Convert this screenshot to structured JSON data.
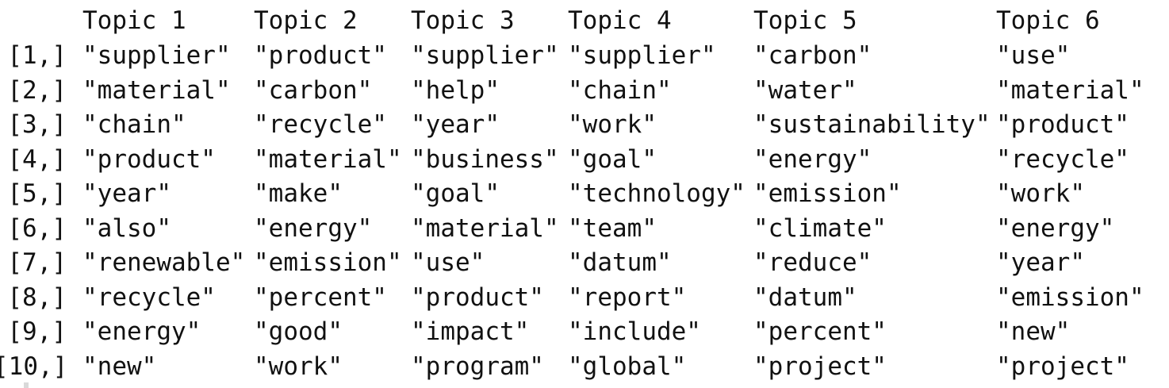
{
  "headers": [
    "Topic 1",
    "Topic 2",
    "Topic 3",
    "Topic 4",
    "Topic 5",
    "Topic 6"
  ],
  "rows": [
    {
      "label": "[1,]",
      "cells": [
        "\"supplier\"",
        "\"product\"",
        "\"supplier\"",
        "\"supplier\"",
        "\"carbon\"",
        "\"use\""
      ]
    },
    {
      "label": "[2,]",
      "cells": [
        "\"material\"",
        "\"carbon\"",
        "\"help\"",
        "\"chain\"",
        "\"water\"",
        "\"material\""
      ]
    },
    {
      "label": "[3,]",
      "cells": [
        "\"chain\"",
        "\"recycle\"",
        "\"year\"",
        "\"work\"",
        "\"sustainability\"",
        "\"product\""
      ]
    },
    {
      "label": "[4,]",
      "cells": [
        "\"product\"",
        "\"material\"",
        "\"business\"",
        "\"goal\"",
        "\"energy\"",
        "\"recycle\""
      ]
    },
    {
      "label": "[5,]",
      "cells": [
        "\"year\"",
        "\"make\"",
        "\"goal\"",
        "\"technology\"",
        "\"emission\"",
        "\"work\""
      ]
    },
    {
      "label": "[6,]",
      "cells": [
        "\"also\"",
        "\"energy\"",
        "\"material\"",
        "\"team\"",
        "\"climate\"",
        "\"energy\""
      ]
    },
    {
      "label": "[7,]",
      "cells": [
        "\"renewable\"",
        "\"emission\"",
        "\"use\"",
        "\"datum\"",
        "\"reduce\"",
        "\"year\""
      ]
    },
    {
      "label": "[8,]",
      "cells": [
        "\"recycle\"",
        "\"percent\"",
        "\"product\"",
        "\"report\"",
        "\"datum\"",
        "\"emission\""
      ]
    },
    {
      "label": "[9,]",
      "cells": [
        "\"energy\"",
        "\"good\"",
        "\"impact\"",
        "\"include\"",
        "\"percent\"",
        "\"new\""
      ]
    },
    {
      "label": "[10,]",
      "cells": [
        "\"new\"",
        "\"work\"",
        "\"program\"",
        "\"global\"",
        "\"project\"",
        "\"project\""
      ]
    }
  ]
}
